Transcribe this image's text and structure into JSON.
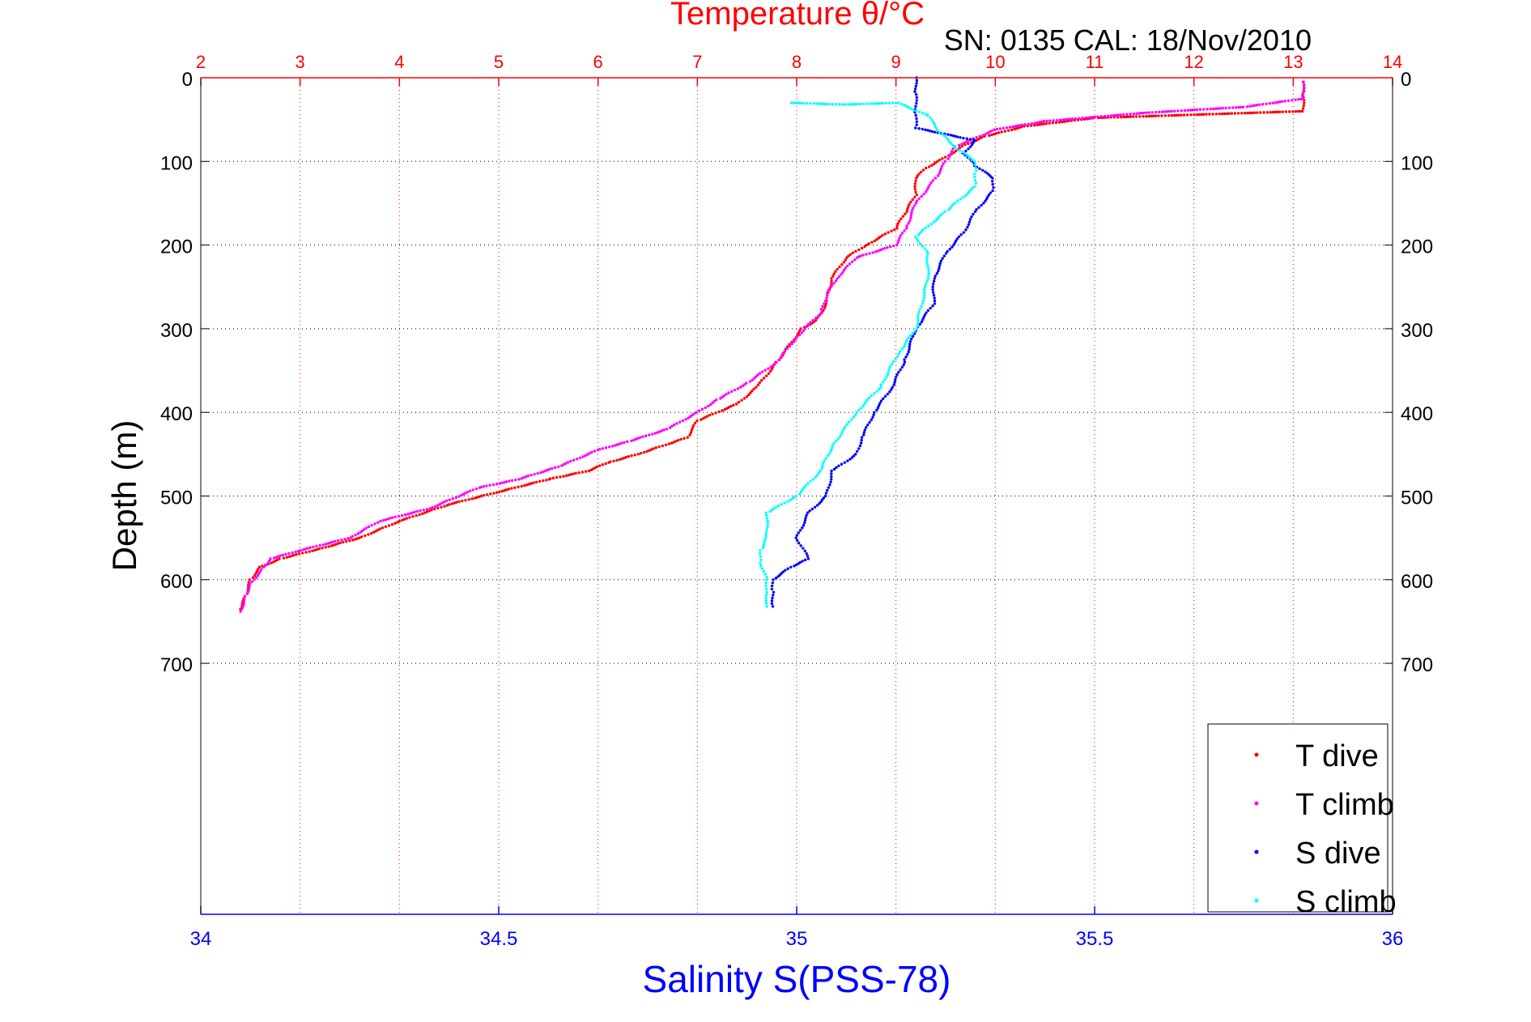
{
  "chart_data": {
    "type": "scatter",
    "title": "Temperature θ/°C",
    "subtitle": "SN: 0135  CAL: 18/Nov/2010",
    "xlabel_top": "Temperature θ/°C",
    "xlabel_bottom": "Salinity S(PSS-78)",
    "ylabel": "Depth (m)",
    "y_reversed": true,
    "ylim": [
      0,
      1000
    ],
    "y_ticks": [
      0,
      100,
      200,
      300,
      400,
      500,
      600,
      700
    ],
    "temp_lim": [
      2,
      14
    ],
    "temp_ticks": [
      2,
      3,
      4,
      5,
      6,
      7,
      8,
      9,
      10,
      11,
      12,
      13,
      14
    ],
    "sal_lim": [
      34,
      36
    ],
    "sal_ticks": [
      34,
      34.5,
      35,
      35.5,
      36
    ],
    "grid": true,
    "legend_position": "bottom-right",
    "colors": {
      "temp_axis": "#ff0000",
      "sal_axis": "#0000ff",
      "t_dive": "#ff0000",
      "t_climb": "#ff00ff",
      "s_dive": "#0000ff",
      "s_climb": "#00ffff",
      "text": "#000000"
    },
    "series": [
      {
        "name": "T dive",
        "axis": "temperature",
        "color": "#ff0000",
        "points": [
          [
            13.1,
            5
          ],
          [
            13.1,
            20
          ],
          [
            13.1,
            40
          ],
          [
            11.0,
            48
          ],
          [
            10.3,
            58
          ],
          [
            9.9,
            70
          ],
          [
            9.7,
            80
          ],
          [
            9.5,
            95
          ],
          [
            9.3,
            108
          ],
          [
            9.2,
            120
          ],
          [
            9.2,
            140
          ],
          [
            9.1,
            160
          ],
          [
            9.0,
            180
          ],
          [
            8.7,
            200
          ],
          [
            8.5,
            215
          ],
          [
            8.35,
            240
          ],
          [
            8.3,
            270
          ],
          [
            8.2,
            290
          ],
          [
            8.05,
            300
          ],
          [
            7.8,
            340
          ],
          [
            7.6,
            370
          ],
          [
            7.4,
            390
          ],
          [
            7.0,
            410
          ],
          [
            6.9,
            430
          ],
          [
            6.4,
            450
          ],
          [
            6.1,
            460
          ],
          [
            5.9,
            470
          ],
          [
            5.5,
            480
          ],
          [
            5.0,
            495
          ],
          [
            4.5,
            510
          ],
          [
            4.0,
            530
          ],
          [
            3.6,
            550
          ],
          [
            3.2,
            563
          ],
          [
            2.8,
            575
          ],
          [
            2.6,
            585
          ],
          [
            2.5,
            600
          ],
          [
            2.45,
            620
          ],
          [
            2.4,
            635
          ]
        ]
      },
      {
        "name": "T climb",
        "axis": "temperature",
        "color": "#ff00ff",
        "points": [
          [
            13.1,
            5
          ],
          [
            13.1,
            25
          ],
          [
            12.5,
            35
          ],
          [
            11.5,
            42
          ],
          [
            10.5,
            52
          ],
          [
            10.0,
            62
          ],
          [
            9.6,
            82
          ],
          [
            9.5,
            100
          ],
          [
            9.4,
            120
          ],
          [
            9.2,
            150
          ],
          [
            9.1,
            180
          ],
          [
            9.0,
            200
          ],
          [
            8.6,
            215
          ],
          [
            8.4,
            240
          ],
          [
            8.3,
            260
          ],
          [
            8.25,
            280
          ],
          [
            8.0,
            310
          ],
          [
            7.8,
            340
          ],
          [
            7.5,
            365
          ],
          [
            7.2,
            385
          ],
          [
            7.0,
            400
          ],
          [
            6.7,
            420
          ],
          [
            6.3,
            435
          ],
          [
            6.0,
            445
          ],
          [
            5.6,
            465
          ],
          [
            5.2,
            480
          ],
          [
            4.8,
            490
          ],
          [
            4.3,
            515
          ],
          [
            3.8,
            530
          ],
          [
            3.5,
            550
          ],
          [
            3.0,
            565
          ],
          [
            2.7,
            575
          ],
          [
            2.6,
            590
          ],
          [
            2.5,
            605
          ],
          [
            2.45,
            620
          ],
          [
            2.4,
            638
          ]
        ]
      },
      {
        "name": "S dive",
        "axis": "salinity",
        "color": "#0000ff",
        "points": [
          [
            35.2,
            0
          ],
          [
            35.2,
            20
          ],
          [
            35.2,
            45
          ],
          [
            35.2,
            60
          ],
          [
            35.3,
            75
          ],
          [
            35.28,
            90
          ],
          [
            35.3,
            105
          ],
          [
            35.33,
            120
          ],
          [
            35.33,
            135
          ],
          [
            35.3,
            160
          ],
          [
            35.28,
            185
          ],
          [
            35.25,
            210
          ],
          [
            35.23,
            240
          ],
          [
            35.23,
            270
          ],
          [
            35.2,
            300
          ],
          [
            35.18,
            340
          ],
          [
            35.16,
            370
          ],
          [
            35.13,
            400
          ],
          [
            35.11,
            430
          ],
          [
            35.1,
            450
          ],
          [
            35.06,
            470
          ],
          [
            35.05,
            500
          ],
          [
            35.02,
            520
          ],
          [
            35.0,
            550
          ],
          [
            35.02,
            575
          ],
          [
            34.99,
            585
          ],
          [
            34.96,
            600
          ],
          [
            34.96,
            615
          ],
          [
            34.96,
            632
          ]
        ]
      },
      {
        "name": "S climb",
        "axis": "salinity",
        "color": "#00ffff",
        "points": [
          [
            34.99,
            30
          ],
          [
            35.08,
            32
          ],
          [
            35.17,
            30
          ],
          [
            35.22,
            45
          ],
          [
            35.24,
            65
          ],
          [
            35.27,
            85
          ],
          [
            35.3,
            100
          ],
          [
            35.3,
            115
          ],
          [
            35.3,
            130
          ],
          [
            35.25,
            160
          ],
          [
            35.2,
            190
          ],
          [
            35.22,
            210
          ],
          [
            35.22,
            240
          ],
          [
            35.21,
            270
          ],
          [
            35.2,
            300
          ],
          [
            35.17,
            330
          ],
          [
            35.14,
            370
          ],
          [
            35.1,
            400
          ],
          [
            35.06,
            440
          ],
          [
            35.04,
            470
          ],
          [
            35.0,
            500
          ],
          [
            34.95,
            520
          ],
          [
            34.95,
            550
          ],
          [
            34.94,
            565
          ],
          [
            34.94,
            580
          ],
          [
            34.95,
            600
          ],
          [
            34.95,
            615
          ],
          [
            34.95,
            632
          ]
        ]
      }
    ]
  }
}
